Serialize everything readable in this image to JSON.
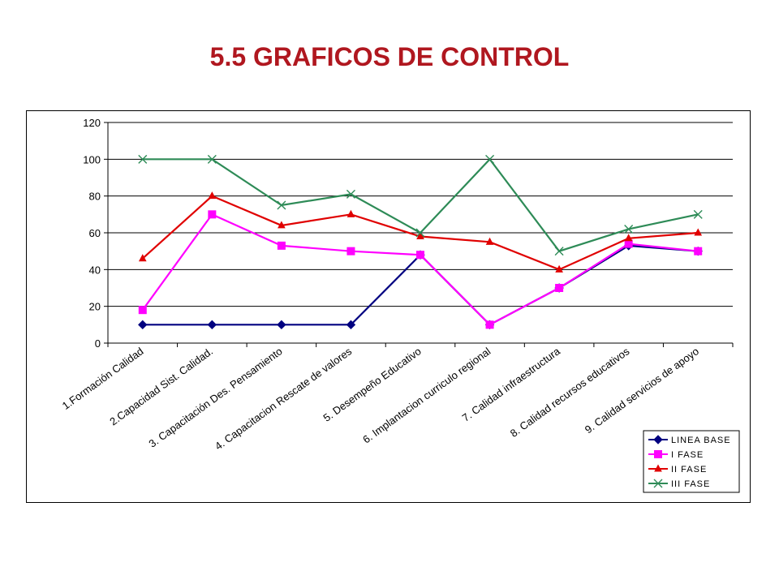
{
  "title": "5.5 GRAFICOS DE CONTROL",
  "chart_data": {
    "type": "line",
    "title": "",
    "xlabel": "",
    "ylabel": "",
    "ylim": [
      0,
      120
    ],
    "yticks": [
      0,
      20,
      40,
      60,
      80,
      100,
      120
    ],
    "grid": true,
    "legend_position": "bottom-right",
    "categories": [
      "1.Formación  Calidad",
      "2.Capacidad Sist. Calidad.",
      "3.  Capacitación Des. Pensamiento",
      "4. Capacitacion Rescate de valores",
      "5. Desempeño Educativo",
      "6. Implantacion curriculo regional",
      "7. Calidad infraestructura",
      "8. Calidad recursos educativos",
      "9. Calidad servicios de apoyo"
    ],
    "series": [
      {
        "name": "LINEA BASE",
        "color": "#000080",
        "marker": "diamond",
        "values": [
          10,
          10,
          10,
          10,
          48,
          10,
          30,
          53,
          50
        ]
      },
      {
        "name": "I FASE",
        "color": "#ff00ff",
        "marker": "square",
        "values": [
          18,
          70,
          53,
          50,
          48,
          10,
          30,
          54,
          50
        ]
      },
      {
        "name": "II FASE",
        "color": "#e00000",
        "marker": "triangle",
        "values": [
          46,
          80,
          64,
          70,
          58,
          55,
          40,
          57,
          60
        ]
      },
      {
        "name": "III FASE",
        "color": "#2e8b57",
        "marker": "x",
        "values": [
          100,
          100,
          75,
          81,
          60,
          100,
          50,
          62,
          70
        ]
      }
    ]
  }
}
